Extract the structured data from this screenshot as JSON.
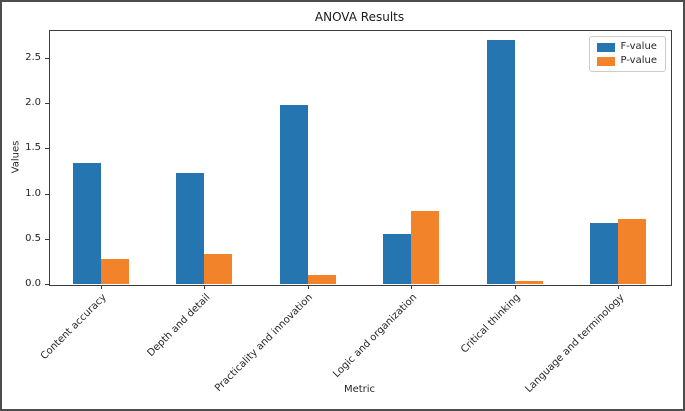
{
  "chart_data": {
    "type": "bar",
    "title": "ANOVA Results",
    "xlabel": "Metric",
    "ylabel": "Values",
    "categories": [
      "Content accuracy",
      "Depth and detail",
      "Practicality and innovation",
      "Logic and organization",
      "Critical thinking",
      "Language and terminology"
    ],
    "series": [
      {
        "name": "F-value",
        "color": "#2575b0",
        "values": [
          1.34,
          1.23,
          1.98,
          0.55,
          2.7,
          0.67
        ]
      },
      {
        "name": "P-value",
        "color": "#f2832b",
        "values": [
          0.28,
          0.33,
          0.1,
          0.81,
          0.03,
          0.72
        ]
      }
    ],
    "ylim": [
      0,
      2.81
    ],
    "yticks": [
      0.0,
      0.5,
      1.0,
      1.5,
      2.0,
      2.5
    ],
    "xtick_rotation": 45,
    "grid": false,
    "legend_position": "upper right"
  }
}
